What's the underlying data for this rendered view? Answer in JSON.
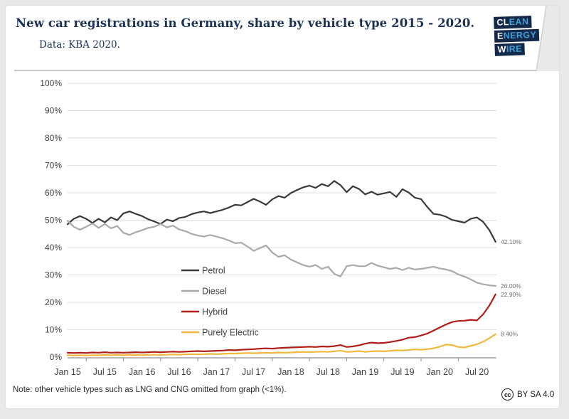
{
  "header": {
    "title": "New car registrations in Germany, share by vehicle type 2015 - 2020.",
    "subtitle": "Data: KBA 2020.",
    "logo": {
      "name": "Clean Energy Wire",
      "lines": [
        {
          "strong": "CL",
          "rest": "EAN"
        },
        {
          "strong": "E",
          "rest": "NERGY"
        },
        {
          "strong": "W",
          "rest": "IRE"
        }
      ],
      "block_color": "#14294a",
      "strong_color": "#ffffff",
      "rest_color": "#3fa0da"
    }
  },
  "footer": {
    "note": "Note: other vehicle types such as LNG and CNG omitted from graph (<1%).",
    "license_icon": "cc",
    "license": "BY SA 4.0"
  },
  "chart_data": {
    "type": "line",
    "title": "New car registrations in Germany, share by vehicle type 2015 - 2020.",
    "x_unit": "month",
    "x_range": [
      "2015-01",
      "2020-10"
    ],
    "x_tick_labels": [
      "Jan 15",
      "Jul 15",
      "Jan 16",
      "Jul 16",
      "Jan 17",
      "Jul 17",
      "Jan 18",
      "Jul 18",
      "Jan 19",
      "Jul 19",
      "Jan 20",
      "Jul 20"
    ],
    "y_tick_labels": [
      "0%",
      "10%",
      "20%",
      "30%",
      "40%",
      "50%",
      "60%",
      "70%",
      "80%",
      "90%",
      "100%"
    ],
    "ylim": [
      0,
      100
    ],
    "y_step": 10,
    "grid": "horizontal-light",
    "legend_position": "inside-left-middle",
    "series": [
      {
        "name": "Petrol",
        "color": "#3a3a3a",
        "end_label": "42.10%",
        "values": [
          48.5,
          50.5,
          51.5,
          50.5,
          49.0,
          50.5,
          49.2,
          51.0,
          50.0,
          52.5,
          53.2,
          52.3,
          51.5,
          50.3,
          49.5,
          48.6,
          50.2,
          49.6,
          50.8,
          51.2,
          52.2,
          52.8,
          53.2,
          52.6,
          53.2,
          53.8,
          54.6,
          55.6,
          55.4,
          56.6,
          57.8,
          56.8,
          55.6,
          57.6,
          58.8,
          58.2,
          59.9,
          61.0,
          62.0,
          62.6,
          61.8,
          63.2,
          62.4,
          64.3,
          62.8,
          60.2,
          62.4,
          61.4,
          59.4,
          60.4,
          59.3,
          59.8,
          60.3,
          58.5,
          61.3,
          60.1,
          58.2,
          57.7,
          54.8,
          52.3,
          52.0,
          51.3,
          50.1,
          49.6,
          49.1,
          50.5,
          51.0,
          49.4,
          46.4,
          42.1
        ]
      },
      {
        "name": "Diesel",
        "color": "#a9a9a9",
        "end_label": "26.00%",
        "values": [
          49.8,
          47.6,
          46.5,
          47.6,
          48.8,
          47.2,
          48.6,
          47.0,
          47.9,
          45.4,
          44.6,
          45.6,
          46.3,
          47.2,
          47.6,
          48.6,
          47.4,
          48.0,
          46.6,
          46.0,
          45.0,
          44.4,
          44.0,
          44.6,
          44.0,
          43.4,
          42.6,
          41.6,
          41.8,
          40.4,
          38.8,
          39.8,
          40.8,
          38.2,
          36.6,
          37.2,
          35.6,
          34.6,
          33.6,
          33.0,
          33.6,
          32.2,
          33.0,
          30.4,
          29.4,
          33.2,
          33.6,
          33.2,
          33.2,
          34.4,
          33.4,
          32.8,
          32.2,
          32.6,
          31.8,
          32.6,
          32.0,
          32.2,
          32.6,
          33.0,
          32.4,
          32.0,
          31.4,
          30.2,
          29.4,
          28.4,
          27.2,
          26.6,
          26.2,
          26.0
        ]
      },
      {
        "name": "Hybrid",
        "color": "#b01e1a",
        "end_label": "22.90%",
        "values": [
          1.6,
          1.5,
          1.6,
          1.5,
          1.7,
          1.6,
          1.8,
          1.6,
          1.7,
          1.6,
          1.7,
          1.8,
          1.7,
          1.8,
          1.9,
          1.8,
          1.9,
          2.0,
          1.9,
          2.0,
          2.1,
          2.2,
          2.1,
          2.2,
          2.3,
          2.4,
          2.6,
          2.5,
          2.7,
          2.8,
          2.9,
          3.1,
          3.2,
          3.1,
          3.3,
          3.4,
          3.5,
          3.6,
          3.7,
          3.8,
          3.7,
          3.9,
          3.8,
          4.0,
          4.4,
          3.7,
          3.9,
          4.3,
          4.9,
          5.3,
          5.1,
          5.2,
          5.5,
          5.9,
          6.4,
          7.1,
          7.3,
          7.9,
          8.6,
          9.7,
          10.8,
          11.9,
          12.8,
          13.2,
          13.3,
          13.6,
          13.4,
          15.6,
          18.8,
          22.9
        ]
      },
      {
        "name": "Purely Electric",
        "color": "#f0b83d",
        "end_label": "8.40%",
        "values": [
          0.7,
          0.6,
          0.7,
          0.6,
          0.7,
          0.7,
          0.8,
          0.7,
          0.8,
          0.7,
          0.8,
          0.8,
          0.7,
          0.8,
          0.9,
          0.8,
          0.9,
          1.0,
          0.9,
          1.0,
          1.1,
          1.0,
          1.1,
          1.2,
          1.1,
          1.2,
          1.3,
          1.3,
          1.4,
          1.5,
          1.4,
          1.5,
          1.6,
          1.5,
          1.7,
          1.6,
          1.7,
          1.8,
          1.9,
          1.8,
          1.9,
          2.0,
          1.9,
          2.1,
          2.4,
          1.9,
          2.0,
          2.2,
          1.9,
          2.1,
          2.2,
          2.1,
          2.3,
          2.5,
          2.4,
          2.6,
          2.8,
          2.7,
          2.9,
          3.2,
          3.8,
          4.6,
          4.4,
          3.7,
          3.5,
          4.1,
          4.7,
          5.6,
          6.9,
          8.4
        ]
      }
    ]
  }
}
